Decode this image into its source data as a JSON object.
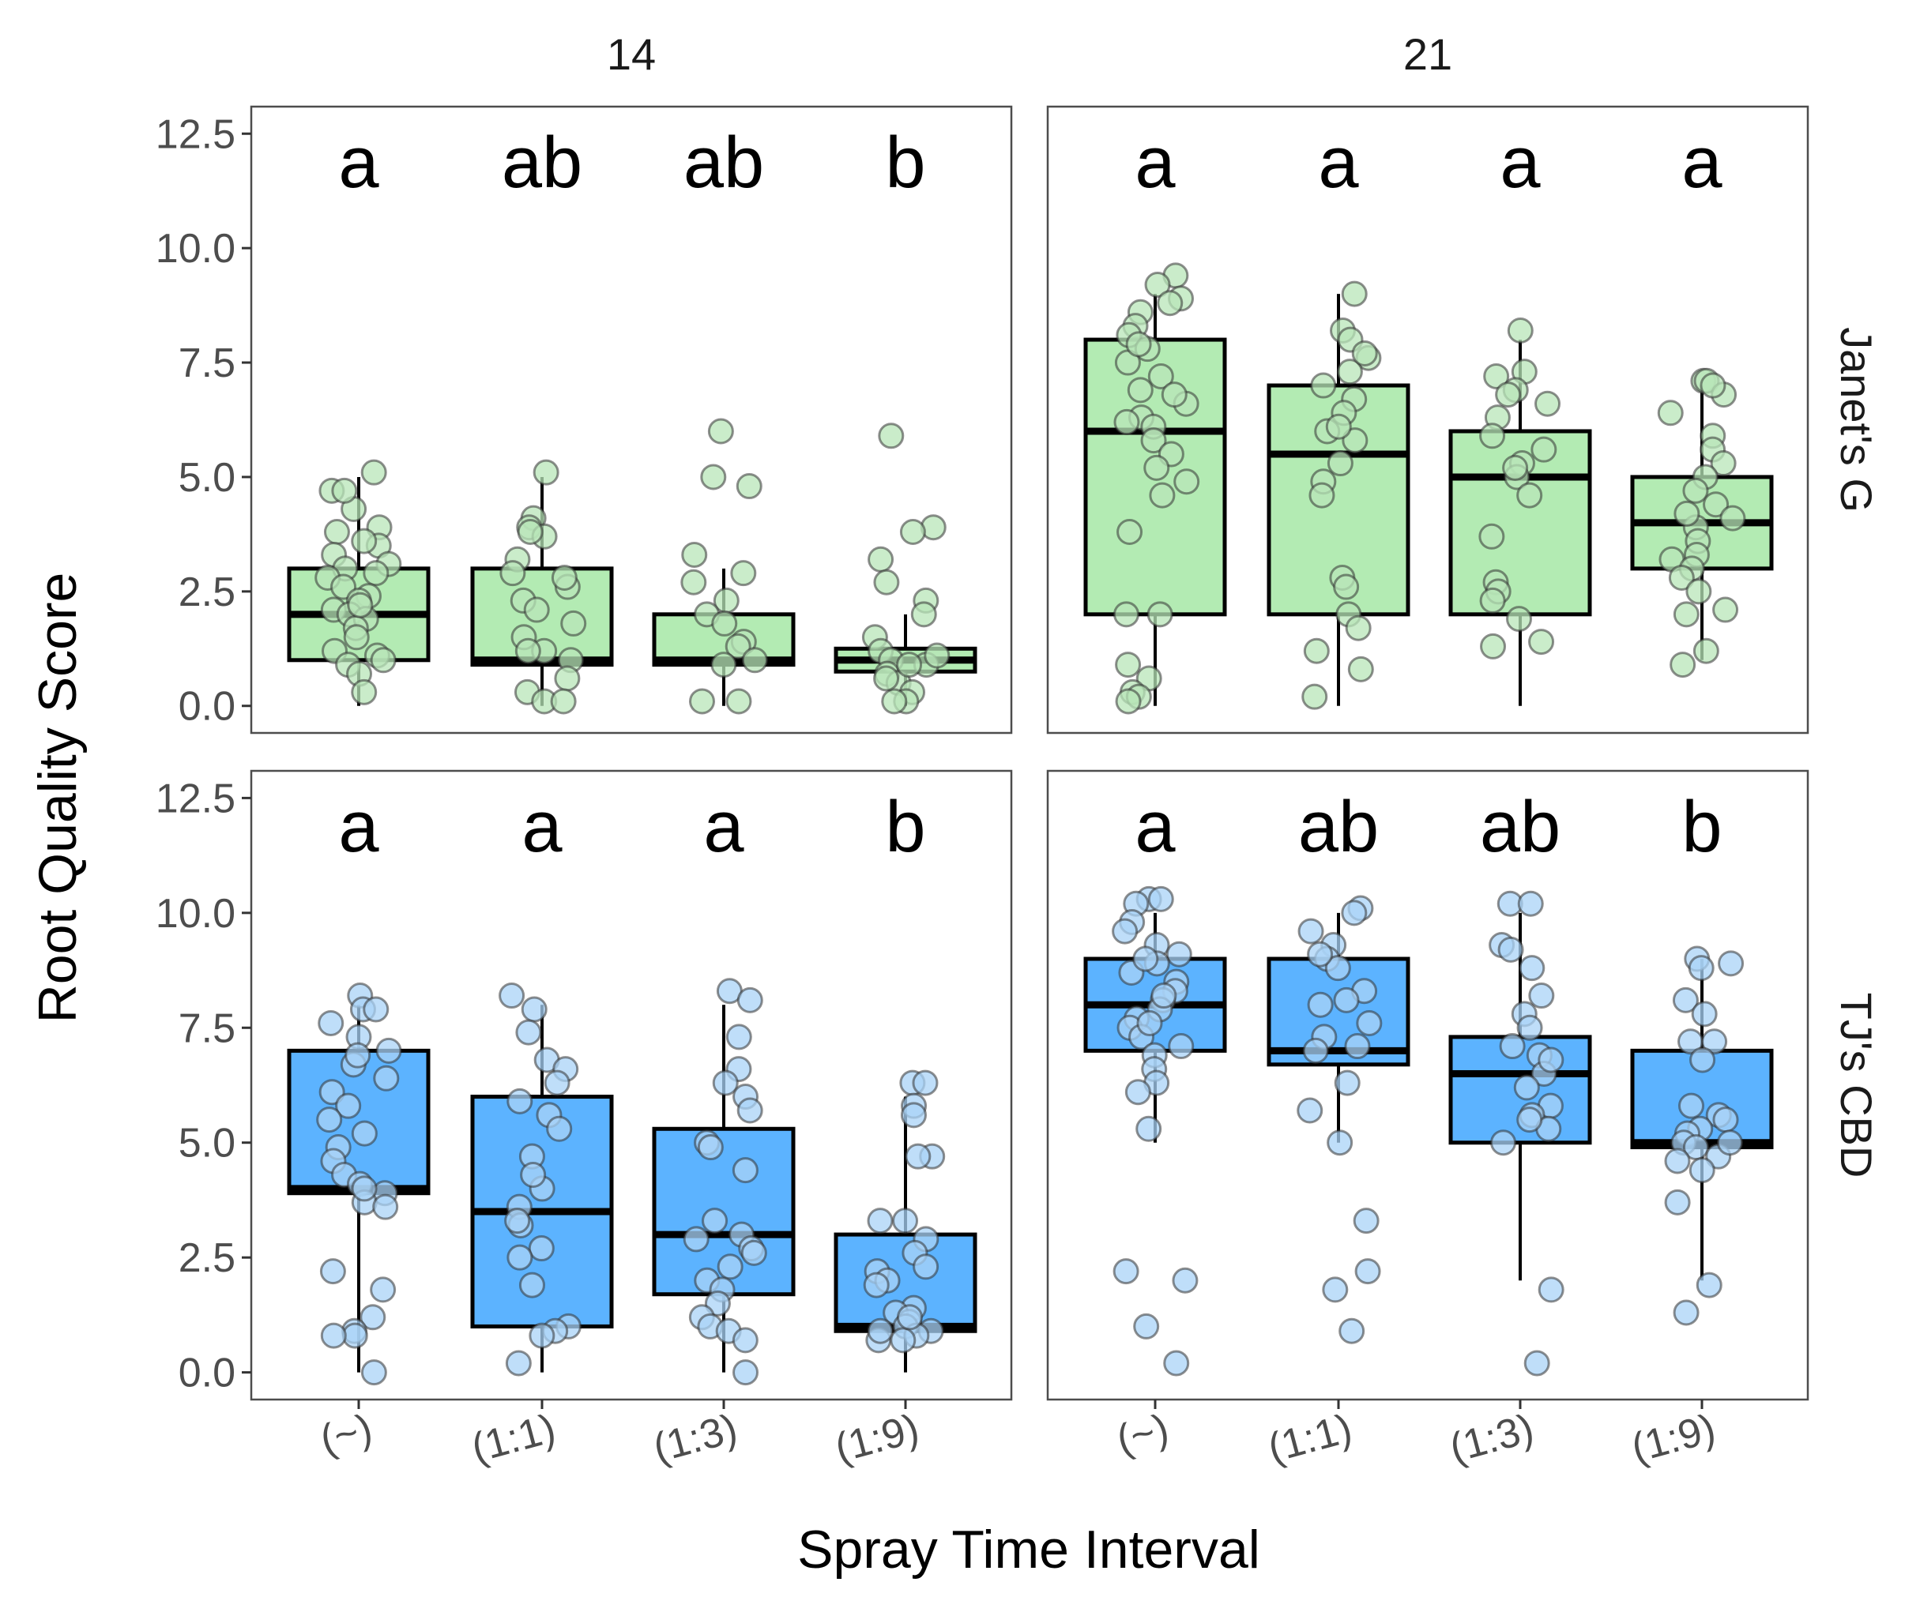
{
  "chart_data": {
    "type": "boxplot",
    "title": "",
    "xlabel": "Spray Time Interval",
    "ylabel": "Root Quality Score",
    "categories": [
      "(~)",
      "(1:1)",
      "(1:3)",
      "(1:9)"
    ],
    "ylim": [
      0,
      12.5
    ],
    "yticks": [
      "0.0",
      "2.5",
      "5.0",
      "7.5",
      "10.0",
      "12.5"
    ],
    "column_facets": [
      "14",
      "21"
    ],
    "row_facets": [
      "Janet's G",
      "TJ's CBD"
    ],
    "colors": {
      "Janet's G": {
        "fill": "#b3ebb3",
        "point": "#b8e6b8"
      },
      "TJ's CBD": {
        "fill": "#5cb3ff",
        "point": "#a9d3f7"
      }
    },
    "panels": [
      {
        "col": "14",
        "row": "Janet's G",
        "letters": [
          "a",
          "ab",
          "ab",
          "b"
        ],
        "boxes": [
          {
            "q1": 1.0,
            "median": 2.0,
            "q3": 3.0,
            "lower": 0.0,
            "upper": 5.0
          },
          {
            "q1": 0.9,
            "median": 1.0,
            "q3": 3.0,
            "lower": 0.0,
            "upper": 5.0
          },
          {
            "q1": 0.9,
            "median": 1.0,
            "q3": 2.0,
            "lower": 0.0,
            "upper": 3.0
          },
          {
            "q1": 0.75,
            "median": 1.0,
            "q3": 1.25,
            "lower": 0.0,
            "upper": 2.0
          }
        ],
        "points": [
          [
            5.1,
            4.7,
            4.3,
            3.9,
            3.8,
            3.5,
            3.3,
            3.1,
            3.0,
            2.9,
            2.8,
            2.6,
            2.4,
            2.3,
            2.1,
            2.0,
            1.9,
            1.7,
            1.5,
            1.2,
            1.1,
            1.0,
            0.9,
            0.7,
            0.3,
            4.7,
            3.6,
            2.2
          ],
          [
            5.1,
            4.1,
            3.9,
            3.7,
            3.2,
            2.9,
            2.6,
            2.3,
            2.1,
            1.8,
            1.5,
            1.2,
            1.0,
            0.6,
            0.3,
            0.1,
            0.1,
            3.8,
            2.8,
            1.2
          ],
          [
            6.0,
            5.0,
            4.8,
            3.3,
            2.9,
            2.7,
            2.3,
            2.0,
            1.8,
            1.4,
            1.3,
            1.0,
            0.9,
            0.1,
            0.1
          ],
          [
            5.9,
            3.9,
            3.8,
            3.2,
            2.7,
            2.3,
            2.0,
            1.5,
            1.2,
            1.0,
            0.9,
            0.7,
            0.5,
            0.3,
            0.1,
            0.1,
            1.1,
            0.9,
            0.6
          ]
        ]
      },
      {
        "col": "21",
        "row": "Janet's G",
        "letters": [
          "a",
          "a",
          "a",
          "a"
        ],
        "boxes": [
          {
            "q1": 2.0,
            "median": 6.0,
            "q3": 8.0,
            "lower": 0.0,
            "upper": 9.0
          },
          {
            "q1": 2.0,
            "median": 5.5,
            "q3": 7.0,
            "lower": 0.0,
            "upper": 9.0
          },
          {
            "q1": 2.0,
            "median": 5.0,
            "q3": 6.0,
            "lower": 0.0,
            "upper": 8.0
          },
          {
            "q1": 3.0,
            "median": 4.0,
            "q3": 5.0,
            "lower": 1.0,
            "upper": 7.0
          }
        ],
        "points": [
          [
            9.4,
            9.2,
            8.9,
            8.6,
            8.3,
            8.1,
            7.8,
            7.5,
            7.2,
            6.9,
            6.6,
            6.3,
            6.1,
            5.8,
            5.5,
            5.2,
            4.9,
            4.6,
            3.8,
            2.0,
            2.0,
            0.9,
            0.6,
            0.3,
            0.2,
            0.1,
            8.8,
            7.9,
            6.8,
            6.2
          ],
          [
            9.0,
            8.2,
            8.0,
            7.6,
            7.3,
            7.0,
            6.7,
            6.4,
            6.0,
            5.8,
            5.3,
            4.9,
            4.6,
            2.8,
            2.6,
            2.0,
            1.7,
            1.2,
            0.8,
            0.2,
            7.7,
            6.1
          ],
          [
            8.2,
            7.3,
            7.2,
            6.9,
            6.6,
            6.3,
            5.9,
            5.6,
            5.3,
            5.0,
            4.6,
            3.7,
            2.7,
            2.5,
            2.3,
            1.9,
            1.4,
            1.3,
            6.8,
            5.2
          ],
          [
            7.1,
            7.1,
            6.8,
            6.4,
            5.9,
            5.6,
            5.3,
            5.0,
            4.7,
            4.4,
            4.1,
            3.9,
            3.6,
            3.3,
            3.2,
            3.0,
            2.8,
            2.5,
            2.1,
            2.0,
            1.2,
            0.9,
            7.0,
            4.2
          ]
        ]
      },
      {
        "col": "14",
        "row": "TJ's CBD",
        "letters": [
          "a",
          "a",
          "a",
          "b"
        ],
        "boxes": [
          {
            "q1": 3.9,
            "median": 4.0,
            "q3": 7.0,
            "lower": 0.0,
            "upper": 8.0
          },
          {
            "q1": 1.0,
            "median": 3.5,
            "q3": 6.0,
            "lower": 0.0,
            "upper": 8.0
          },
          {
            "q1": 1.7,
            "median": 3.0,
            "q3": 5.3,
            "lower": 0.0,
            "upper": 8.0
          },
          {
            "q1": 0.9,
            "median": 1.0,
            "q3": 3.0,
            "lower": 0.0,
            "upper": 6.0
          }
        ],
        "points": [
          [
            8.2,
            7.9,
            7.6,
            7.3,
            7.0,
            6.7,
            6.4,
            6.1,
            5.8,
            5.5,
            5.2,
            4.9,
            4.6,
            4.3,
            4.1,
            3.9,
            3.7,
            3.6,
            2.2,
            1.8,
            1.2,
            0.9,
            0.8,
            0.8,
            0.0,
            7.9,
            6.9,
            4.0
          ],
          [
            8.2,
            7.9,
            7.4,
            6.8,
            6.6,
            6.3,
            5.9,
            5.6,
            5.3,
            4.7,
            4.0,
            3.6,
            3.2,
            2.7,
            2.5,
            1.9,
            1.0,
            0.9,
            0.8,
            0.2,
            4.3,
            3.3
          ],
          [
            8.3,
            8.1,
            7.3,
            6.6,
            6.3,
            6.0,
            5.7,
            5.0,
            4.9,
            4.4,
            3.3,
            3.0,
            2.9,
            2.7,
            2.3,
            2.0,
            1.8,
            1.5,
            1.2,
            1.0,
            0.9,
            0.7,
            0.0,
            2.6
          ],
          [
            6.3,
            6.3,
            5.8,
            5.6,
            4.7,
            4.7,
            3.3,
            3.3,
            2.9,
            2.6,
            2.3,
            2.2,
            2.0,
            1.9,
            1.4,
            1.3,
            1.1,
            1.0,
            0.9,
            0.8,
            0.7,
            0.7,
            1.2,
            0.9
          ]
        ]
      },
      {
        "col": "21",
        "row": "TJ's CBD",
        "letters": [
          "a",
          "ab",
          "ab",
          "b"
        ],
        "boxes": [
          {
            "q1": 7.0,
            "median": 8.0,
            "q3": 9.0,
            "lower": 5.0,
            "upper": 10.0
          },
          {
            "q1": 6.7,
            "median": 7.0,
            "q3": 9.0,
            "lower": 5.0,
            "upper": 10.0
          },
          {
            "q1": 5.0,
            "median": 6.5,
            "q3": 7.3,
            "lower": 2.0,
            "upper": 10.0
          },
          {
            "q1": 4.9,
            "median": 5.0,
            "q3": 7.0,
            "lower": 2.0,
            "upper": 9.0
          }
        ],
        "points": [
          [
            10.3,
            10.2,
            9.8,
            9.6,
            9.3,
            9.1,
            8.9,
            8.7,
            8.5,
            8.3,
            8.1,
            7.9,
            7.7,
            7.5,
            7.3,
            7.1,
            6.9,
            6.6,
            6.3,
            6.1,
            5.3,
            2.2,
            2.0,
            1.0,
            0.2,
            10.3,
            9.0,
            8.2,
            7.6
          ],
          [
            10.1,
            10.0,
            9.6,
            9.3,
            9.0,
            8.8,
            8.3,
            8.0,
            7.6,
            7.3,
            7.1,
            7.0,
            6.3,
            5.7,
            5.0,
            3.3,
            2.2,
            1.8,
            0.9,
            9.1,
            8.1
          ],
          [
            10.2,
            10.2,
            9.3,
            9.2,
            8.8,
            8.2,
            7.8,
            7.5,
            7.1,
            6.9,
            6.5,
            6.2,
            5.8,
            5.6,
            5.3,
            5.0,
            1.8,
            0.2,
            6.8,
            5.5
          ],
          [
            9.0,
            8.9,
            8.8,
            8.1,
            7.8,
            7.2,
            7.2,
            6.8,
            5.8,
            5.6,
            5.3,
            5.2,
            5.0,
            4.9,
            4.7,
            4.6,
            4.4,
            3.7,
            1.9,
            1.3,
            5.5,
            5.0
          ]
        ]
      }
    ]
  }
}
